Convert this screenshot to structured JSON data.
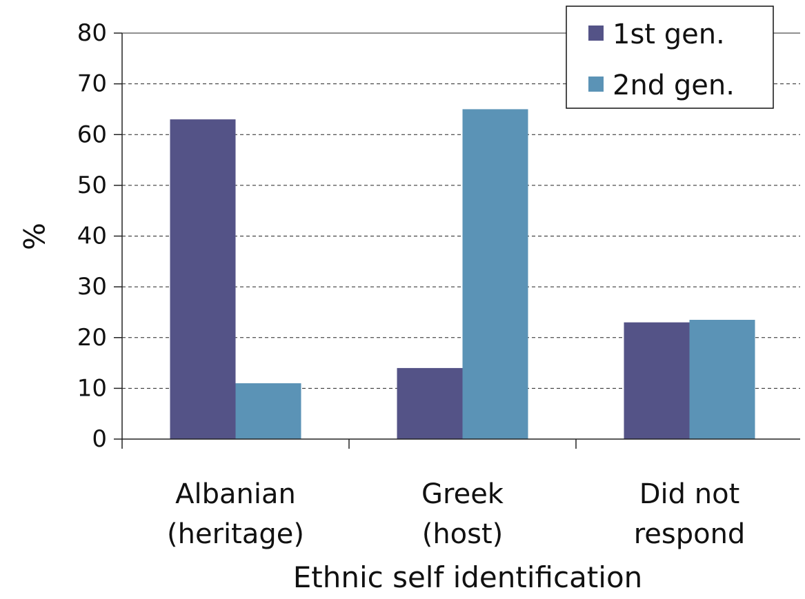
{
  "chart_data": {
    "type": "bar",
    "title": "",
    "xlabel": "Ethnic self identification",
    "ylabel": "%",
    "ylim": [
      0,
      80
    ],
    "yticks": [
      0,
      10,
      20,
      30,
      40,
      50,
      60,
      70,
      80
    ],
    "grid": true,
    "legend_position": "top-right",
    "categories": [
      [
        "Albanian",
        "(heritage)"
      ],
      [
        "Greek",
        "(host)"
      ],
      [
        "Did not",
        "respond"
      ]
    ],
    "series": [
      {
        "name": "1st gen.",
        "color": "#545387",
        "values": [
          63,
          14,
          23
        ]
      },
      {
        "name": "2nd gen.",
        "color": "#5b93b6",
        "values": [
          11,
          65,
          23.5
        ]
      }
    ]
  }
}
